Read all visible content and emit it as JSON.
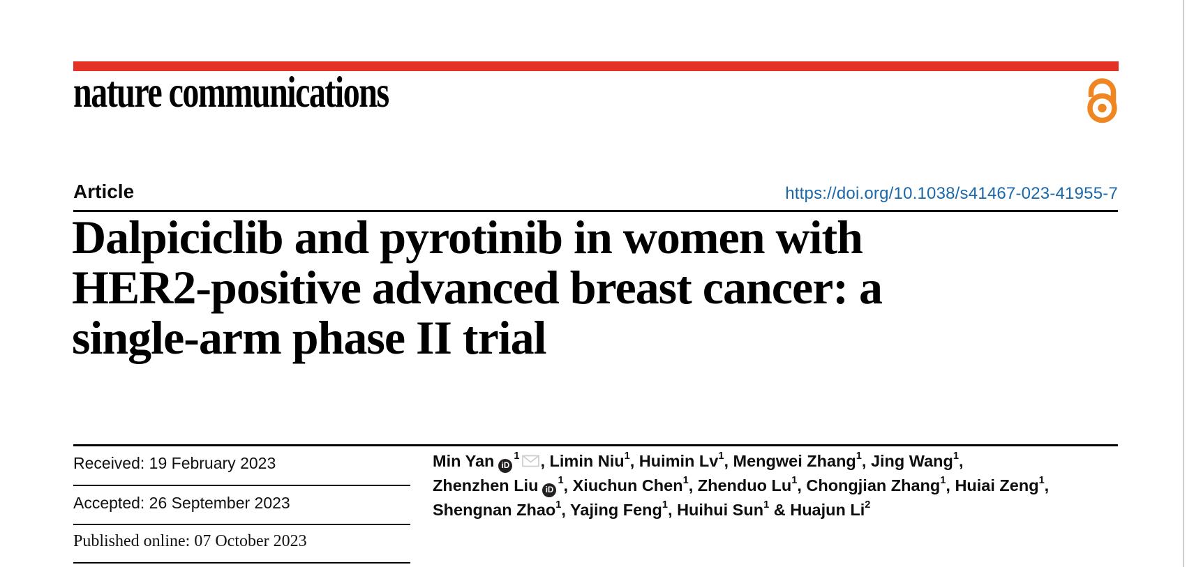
{
  "theme": {
    "brand_red": "#e43227",
    "open_access_orange": "#ef8621",
    "link_blue": "#1a68aa"
  },
  "header": {
    "journal_logo": "nature communications",
    "open_access_icon": "open-access-padlock"
  },
  "article": {
    "type_label": "Article",
    "doi": "https://doi.org/10.1038/s41467-023-41955-7",
    "title_lines": [
      "Dalpiciclib and pyrotinib in women with",
      "HER2-positive advanced breast cancer: a",
      "single-arm phase II trial"
    ]
  },
  "dates": {
    "received": "Received: 19 February 2023",
    "accepted": "Accepted: 26 September 2023",
    "published": "Published online: 07 October 2023"
  },
  "authors": [
    {
      "name": "Min Yan",
      "sup": "1",
      "orcid": true,
      "email": true,
      "sep": ", "
    },
    {
      "name": "Limin Niu",
      "sup": "1",
      "sep": ", "
    },
    {
      "name": "Huimin Lv",
      "sup": "1",
      "sep": ", "
    },
    {
      "name": "Mengwei Zhang",
      "sup": "1",
      "sep": ", "
    },
    {
      "name": "Jing Wang",
      "sup": "1",
      "sep": ",\n"
    },
    {
      "name": "Zhenzhen Liu",
      "sup": "1",
      "orcid": true,
      "sep": ", "
    },
    {
      "name": "Xiuchun Chen",
      "sup": "1",
      "sep": ", "
    },
    {
      "name": "Zhenduo Lu",
      "sup": "1",
      "sep": ", "
    },
    {
      "name": "Chongjian Zhang",
      "sup": "1",
      "sep": ", "
    },
    {
      "name": "Huiai Zeng",
      "sup": "1",
      "sep": ",\n"
    },
    {
      "name": "Shengnan Zhao",
      "sup": "1",
      "sep": ", "
    },
    {
      "name": "Yajing Feng",
      "sup": "1",
      "sep": ", "
    },
    {
      "name": "Huihui Sun",
      "sup": "1",
      "sep": " & "
    },
    {
      "name": "Huajun Li",
      "sup": "2",
      "sep": ""
    }
  ]
}
